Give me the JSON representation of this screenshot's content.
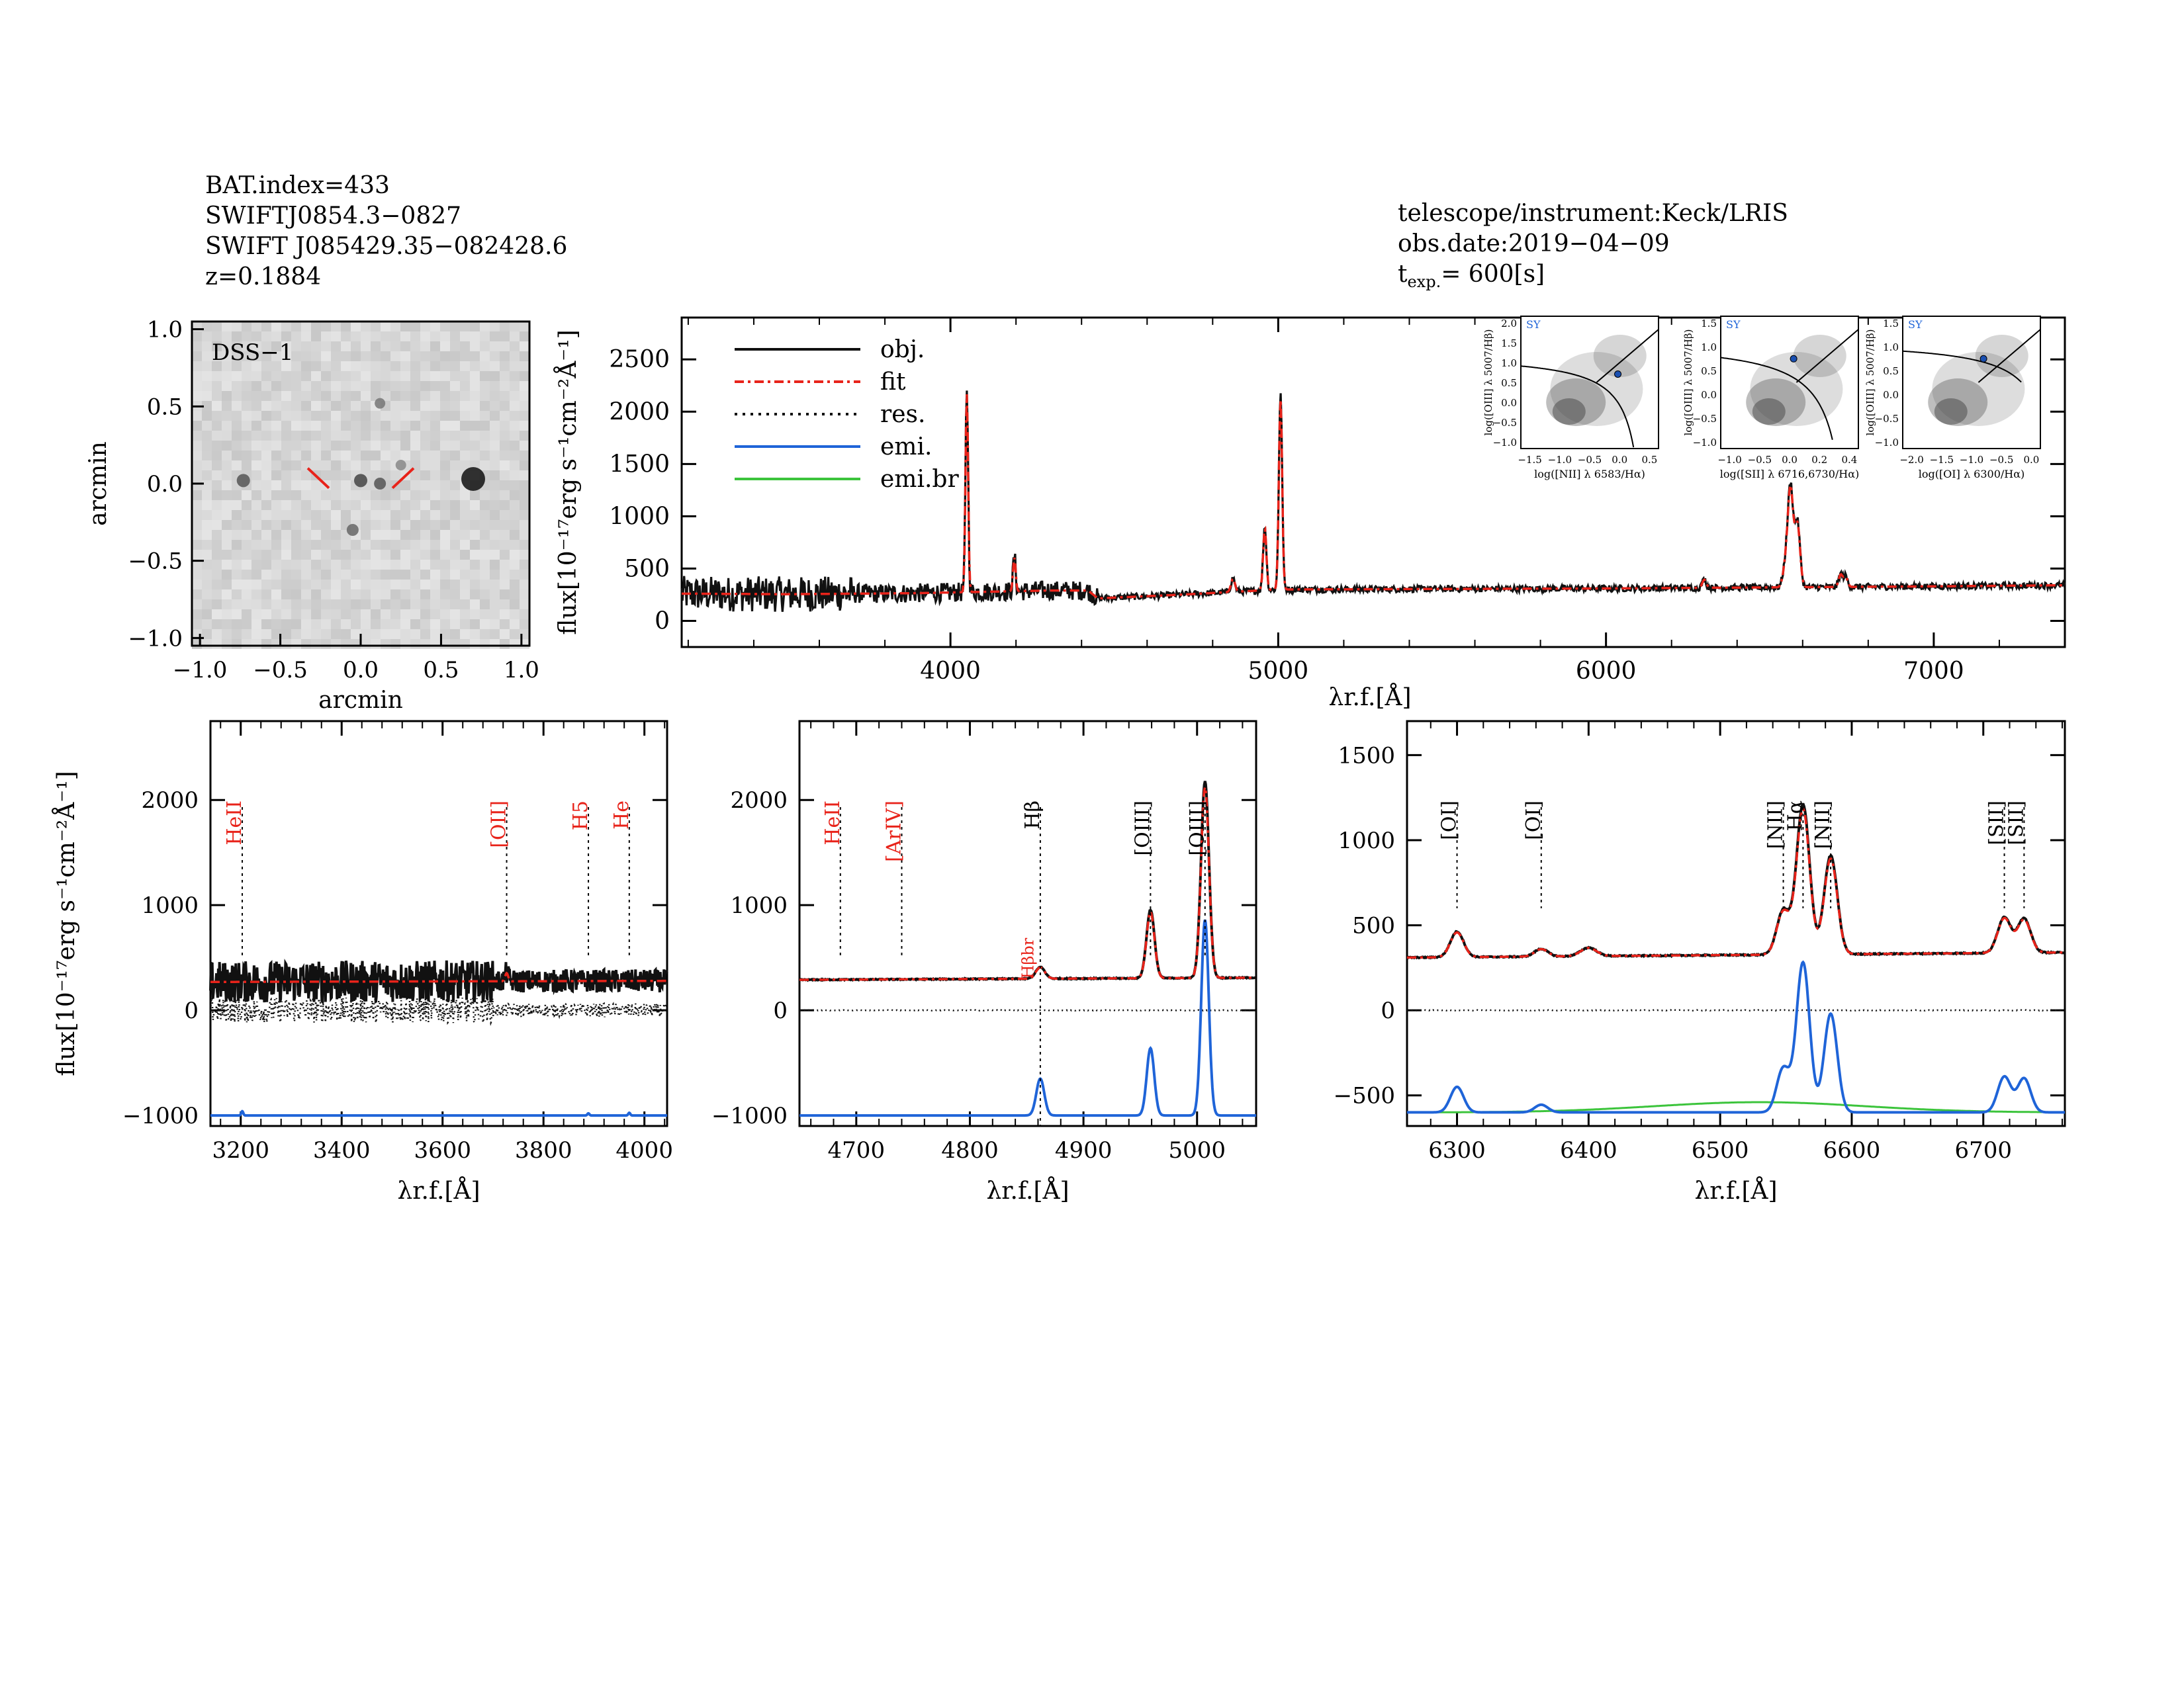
{
  "header": {
    "bat_index": "BAT.index=433",
    "swift_id": "SWIFTJ0854.3−0827",
    "swift_name": "SWIFT J085429.35−082428.6",
    "redshift": "z=0.1884",
    "telescope": "telescope/instrument:Keck/LRIS",
    "obs_date": "obs.date:2019−04−09",
    "texp_prefix": "t",
    "texp_sub": "exp.",
    "texp_value": "=  600[s]"
  },
  "colors": {
    "obj": "#111111",
    "fit": "#e8231a",
    "res": "#111111",
    "emi": "#1f64d8",
    "emi_br": "#3cc43c",
    "dot": "#1a4fb0"
  },
  "image_panel": {
    "label": "DSS−1",
    "xlabel": "arcmin",
    "ylabel": "arcmin",
    "xticks": [
      "−1.0",
      "−0.5",
      "0.0",
      "0.5",
      "1.0"
    ],
    "yticks": [
      "1.0",
      "0.5",
      "0.0",
      "−0.5",
      "−1.0"
    ]
  },
  "chart_data": [
    {
      "id": "full_spectrum",
      "type": "line",
      "xlabel": "λr.f.[Å]",
      "ylabel": "flux[10⁻¹⁷erg s⁻¹cm⁻²Å⁻¹]",
      "xlim": [
        3180,
        7400
      ],
      "ylim": [
        -250,
        2900
      ],
      "xticks": [
        4000,
        5000,
        6000,
        7000
      ],
      "yticks": [
        0,
        500,
        1000,
        1500,
        2000,
        2500
      ],
      "legend": [
        "obj.",
        "fit",
        "res.",
        "emi.",
        "emi.br"
      ],
      "continuum": [
        [
          3200,
          260
        ],
        [
          3500,
          255
        ],
        [
          3900,
          265
        ],
        [
          4300,
          290
        ],
        [
          4420,
          290
        ],
        [
          4450,
          215
        ],
        [
          4700,
          250
        ],
        [
          5000,
          300
        ],
        [
          5500,
          305
        ],
        [
          6000,
          310
        ],
        [
          6500,
          320
        ],
        [
          7000,
          330
        ],
        [
          7380,
          340
        ]
      ],
      "lines": [
        [
          4050,
          1950,
          4
        ],
        [
          4195,
          330,
          4
        ],
        [
          4862,
          130,
          6
        ],
        [
          4959,
          610,
          5
        ],
        [
          5007,
          1880,
          5
        ],
        [
          6300,
          80,
          6
        ],
        [
          6548,
          210,
          8
        ],
        [
          6563,
          950,
          8
        ],
        [
          6584,
          620,
          8
        ],
        [
          6716,
          120,
          6
        ],
        [
          6731,
          100,
          6
        ]
      ],
      "noise_amp": 170
    },
    {
      "id": "zoom_blue",
      "type": "line",
      "xlabel": "λr.f.[Å]",
      "ylabel": "flux[10⁻¹⁷erg s⁻¹cm⁻²Å⁻¹]",
      "xlim": [
        3140,
        4045
      ],
      "ylim": [
        -1100,
        2750
      ],
      "xticks": [
        3200,
        3400,
        3600,
        3800,
        4000
      ],
      "yticks": [
        -1000,
        0,
        1000,
        2000
      ],
      "line_markers": [
        {
          "label": "HeII",
          "x": 3203,
          "color": "red"
        },
        {
          "label": "[OII]",
          "x": 3727,
          "color": "red"
        },
        {
          "label": "H5",
          "x": 3889,
          "color": "red"
        },
        {
          "label": "He",
          "x": 3970,
          "color": "red"
        }
      ],
      "continuum": [
        [
          3150,
          270
        ],
        [
          4045,
          280
        ]
      ],
      "lines": [
        [
          3727,
          80,
          3
        ]
      ],
      "emi": [
        [
          3203,
          40,
          2
        ],
        [
          3889,
          20,
          2
        ],
        [
          3970,
          25,
          2
        ]
      ],
      "noise_amp": 200
    },
    {
      "id": "zoom_hbeta",
      "type": "line",
      "xlabel": "λr.f.[Å]",
      "ylim": [
        -1100,
        2750
      ],
      "xlim": [
        4650,
        5052
      ],
      "xticks": [
        4700,
        4800,
        4900,
        5000
      ],
      "yticks": [
        -1000,
        0,
        1000,
        2000
      ],
      "line_markers": [
        {
          "label": "HeII",
          "x": 4686,
          "color": "red"
        },
        {
          "label": "[ArIV]",
          "x": 4740,
          "color": "red"
        },
        {
          "label": "Hβ",
          "x": 4862,
          "color": "black"
        },
        {
          "label": "[OIII]",
          "x": 4959,
          "color": "black"
        },
        {
          "label": "[OIII]",
          "x": 5007,
          "color": "black"
        }
      ],
      "extra_label": "Hβbr",
      "continuum": [
        [
          4650,
          290
        ],
        [
          5052,
          310
        ]
      ],
      "lines": [
        [
          4862,
          110,
          4
        ],
        [
          4959,
          650,
          3.5
        ],
        [
          5007,
          1870,
          3.5
        ]
      ],
      "emi": [
        [
          4862,
          350,
          3.5
        ],
        [
          4959,
          640,
          3.3
        ],
        [
          5007,
          1860,
          3.3
        ]
      ],
      "noise_amp": 25
    },
    {
      "id": "zoom_halpha",
      "type": "line",
      "xlabel": "λr.f.[Å]",
      "ylim": [
        -680,
        1700
      ],
      "xlim": [
        6262,
        6762
      ],
      "xticks": [
        6300,
        6400,
        6500,
        6600,
        6700
      ],
      "yticks": [
        -500,
        0,
        500,
        1000,
        1500
      ],
      "line_markers": [
        {
          "label": "[OI]",
          "x": 6300,
          "color": "black"
        },
        {
          "label": "[OI]",
          "x": 6364,
          "color": "black"
        },
        {
          "label": "[NII]",
          "x": 6548,
          "color": "black"
        },
        {
          "label": "Hα",
          "x": 6563,
          "color": "black"
        },
        {
          "label": "[NII]",
          "x": 6584,
          "color": "black"
        },
        {
          "label": "[SII]",
          "x": 6716,
          "color": "black"
        },
        {
          "label": "[SII]",
          "x": 6731,
          "color": "black"
        }
      ],
      "continuum": [
        [
          6262,
          310
        ],
        [
          6762,
          340
        ]
      ],
      "lines": [
        [
          6300,
          150,
          5
        ],
        [
          6364,
          45,
          5
        ],
        [
          6400,
          50,
          6
        ],
        [
          6548,
          260,
          5
        ],
        [
          6563,
          880,
          5
        ],
        [
          6584,
          580,
          5
        ],
        [
          6716,
          210,
          5
        ],
        [
          6731,
          200,
          5
        ]
      ],
      "emi": [
        [
          6300,
          150,
          5
        ],
        [
          6364,
          45,
          5
        ],
        [
          6548,
          260,
          5
        ],
        [
          6563,
          880,
          5
        ],
        [
          6584,
          580,
          5
        ],
        [
          6716,
          210,
          5
        ],
        [
          6731,
          200,
          5
        ]
      ],
      "broad": [
        6530,
        60,
        80
      ],
      "noise_amp": 18
    }
  ],
  "bpt": [
    {
      "tag": "SY",
      "xlabel": "log([NII] λ 6583/Hα)",
      "ylabel": "log([OIII] λ 5007/Hβ)",
      "xticks": [
        "−1.5",
        "−1.0",
        "−0.5",
        "0.0",
        "0.5"
      ],
      "yticks": [
        "2.0",
        "1.5",
        "1.0",
        "0.5",
        "0.0",
        "−0.5",
        "−1.0"
      ],
      "xlim": [
        -1.6,
        0.6
      ],
      "ylim": [
        -1.1,
        2.1
      ],
      "point": [
        -0.05,
        0.7
      ]
    },
    {
      "tag": "SY",
      "xlabel": "log([SII] λ 6716,6730/Hα)",
      "ylabel": "log([OIII] λ 5007/Hβ)",
      "xticks": [
        "−1.0",
        "−0.5",
        "0.0",
        "0.2",
        "0.4"
      ],
      "yticks": [
        "1.5",
        "1.0",
        "0.5",
        "0.0",
        "−0.5",
        "−1.0"
      ],
      "xlim": [
        -1.2,
        0.5
      ],
      "ylim": [
        -1.1,
        1.7
      ],
      "point": [
        -0.3,
        0.8
      ]
    },
    {
      "tag": "SY",
      "xlabel": "log([OI] λ 6300/Hα)",
      "ylabel": "log([OIII] λ 5007/Hβ)",
      "xticks": [
        "−2.0",
        "−1.5",
        "−1.0",
        "−0.5",
        "0.0"
      ],
      "yticks": [
        "1.5",
        "1.0",
        "0.5",
        "0.0",
        "−0.5",
        "−1.0"
      ],
      "xlim": [
        -2.2,
        0.1
      ],
      "ylim": [
        -1.1,
        1.7
      ],
      "point": [
        -0.85,
        0.8
      ]
    }
  ]
}
